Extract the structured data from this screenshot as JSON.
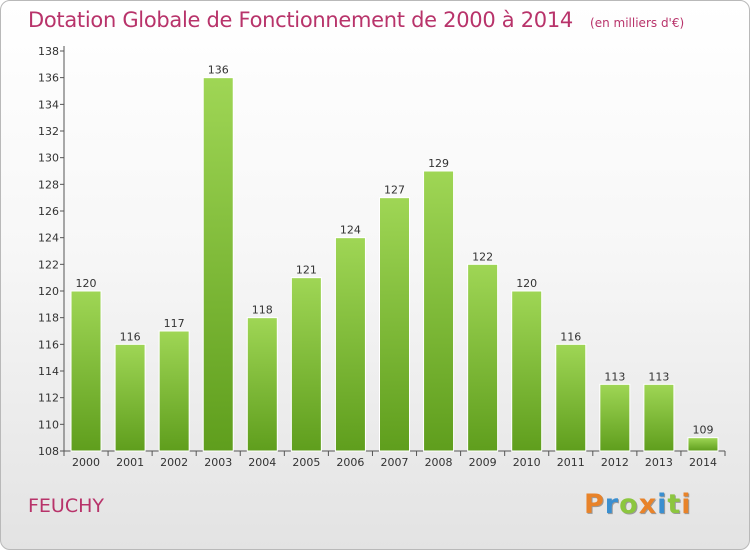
{
  "title": "Dotation Globale de Fonctionnement de 2000 à 2014",
  "unit": "(en milliers d'€)",
  "commune": "FEUCHY",
  "brand": {
    "letters": [
      "P",
      "r",
      "o",
      "x",
      "i",
      "t",
      "i"
    ],
    "colors": [
      "#e8832a",
      "#3a8fd0",
      "#8cc63f",
      "#e8832a",
      "#3a8fd0",
      "#8cc63f",
      "#e8832a"
    ]
  },
  "colors": {
    "bar_top": "#9fd655",
    "bar_bottom": "#5f9e1d",
    "title": "#b8336a"
  },
  "chart_data": {
    "type": "bar",
    "categories": [
      "2000",
      "2001",
      "2002",
      "2003",
      "2004",
      "2005",
      "2006",
      "2007",
      "2008",
      "2009",
      "2010",
      "2011",
      "2012",
      "2013",
      "2014"
    ],
    "values": [
      120,
      116,
      117,
      136,
      118,
      121,
      124,
      127,
      129,
      122,
      120,
      116,
      113,
      113,
      109
    ],
    "ylim": [
      108,
      138
    ],
    "yticks": [
      108,
      110,
      112,
      114,
      116,
      118,
      120,
      122,
      124,
      126,
      128,
      130,
      132,
      134,
      136,
      138
    ],
    "grid": false,
    "xlabel": "",
    "ylabel": ""
  }
}
